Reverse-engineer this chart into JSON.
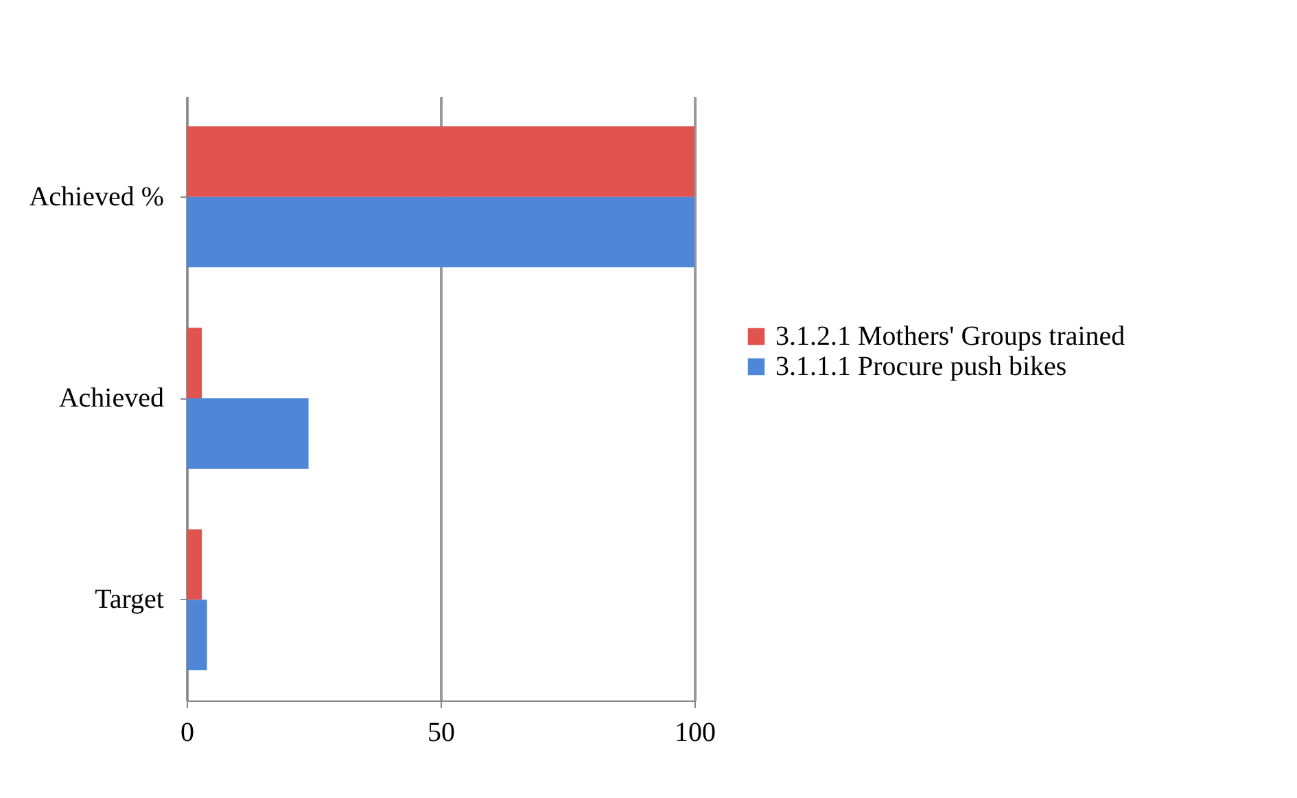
{
  "chart_data": {
    "type": "bar",
    "orientation": "horizontal",
    "categories": [
      "Achieved %",
      "Achieved",
      "Target"
    ],
    "series": [
      {
        "name": "3.1.2.1 Mothers' Groups trained",
        "color": "#e0534f",
        "values": [
          100,
          3,
          3
        ]
      },
      {
        "name": "3.1.1.1 Procure push bikes",
        "color": "#4f86d8",
        "values": [
          100,
          24,
          4
        ]
      }
    ],
    "xlim": [
      0,
      100
    ],
    "xticks": [
      0,
      50,
      100
    ],
    "grid": "x",
    "legend": "right"
  }
}
